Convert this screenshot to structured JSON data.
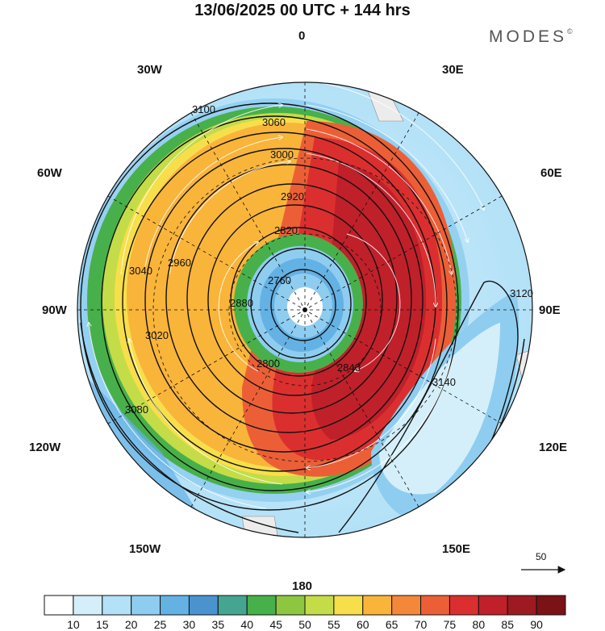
{
  "title": "13/06/2025  00 UTC  + 144 hrs",
  "brand": "MODES",
  "brand_mark": "©",
  "longitude_labels": {
    "top": "0",
    "bottom": "180",
    "left": "90W",
    "right": "90E",
    "ul1": "30W",
    "ul2": "60W",
    "ur1": "30E",
    "ur2": "60E",
    "ll1": "120W",
    "ll2": "150W",
    "lr1": "120E",
    "lr2": "150E"
  },
  "contours": [
    {
      "label": "2760"
    },
    {
      "label": "2800"
    },
    {
      "label": "2820"
    },
    {
      "label": "2840"
    },
    {
      "label": "2880"
    },
    {
      "label": "2920"
    },
    {
      "label": "2960"
    },
    {
      "label": "3000"
    },
    {
      "label": "3020"
    },
    {
      "label": "3040"
    },
    {
      "label": "3060"
    },
    {
      "label": "3080"
    },
    {
      "label": "3100"
    },
    {
      "label": "3120"
    },
    {
      "label": "3140"
    }
  ],
  "reference_vector": "50",
  "colorbar": {
    "labels": [
      "10",
      "15",
      "20",
      "25",
      "30",
      "35",
      "40",
      "45",
      "50",
      "55",
      "60",
      "65",
      "70",
      "75",
      "80",
      "85",
      "90"
    ],
    "colors": [
      "#ffffff",
      "#d4effa",
      "#b3e1f7",
      "#8ecdf0",
      "#64b1e4",
      "#4a93cf",
      "#45a591",
      "#48b04a",
      "#8dc641",
      "#c4dc47",
      "#f7df4b",
      "#f9b43a",
      "#f5873a",
      "#ec5f36",
      "#db2f2f",
      "#c0202a",
      "#9e1a22",
      "#7a1216"
    ]
  },
  "colors": {
    "jet_core": "#c0202a",
    "land": "#ececec",
    "contour": "#111111",
    "wind_vectors": "#ffffff"
  }
}
